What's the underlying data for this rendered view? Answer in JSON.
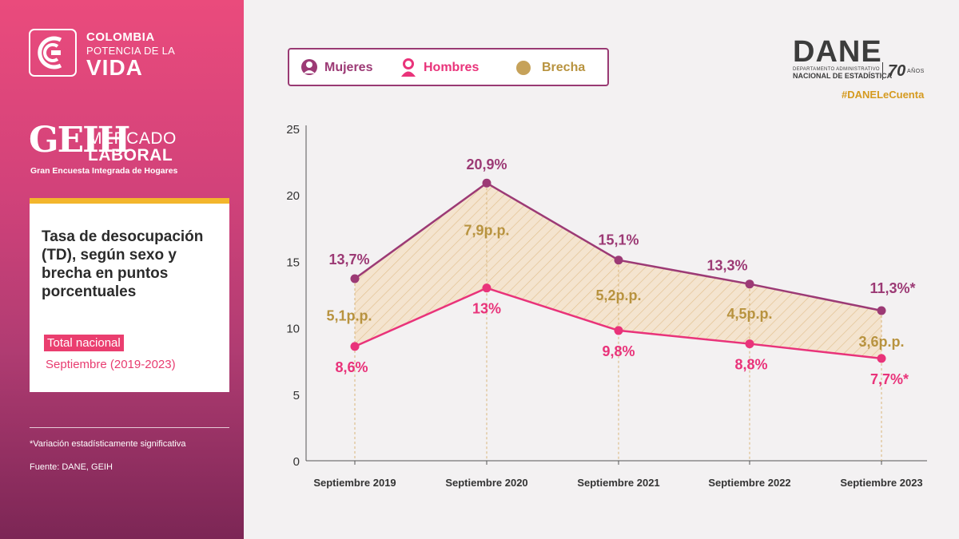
{
  "branding": {
    "colombia_line1": "COLOMBIA",
    "colombia_line2": "POTENCIA DE LA",
    "colombia_line3": "VIDA",
    "geih_mark": "GEIH",
    "geih_line1": "MERCADO",
    "geih_line2": "LABORAL",
    "geih_sub": "Gran Encuesta Integrada de Hogares",
    "dane_word": "DANE",
    "dane_sub1": "DEPARTAMENTO ADMINISTRATIVO",
    "dane_sub2": "NACIONAL DE ESTADÍSTICA",
    "dane_seventy": "70",
    "dane_anos": "AÑOS",
    "hashtag": "#DANELeCuenta"
  },
  "card": {
    "title": "Tasa de desocupación (TD), según sexo y brecha en puntos porcentuales",
    "tag": "Total nacional",
    "period": "Septiembre (2019-2023)"
  },
  "footer": {
    "note": "*Variación estadísticamente significativa",
    "source": "Fuente: DANE, GEIH"
  },
  "legend": {
    "mujeres": "Mujeres",
    "hombres": "Hombres",
    "brecha": "Brecha"
  },
  "colors": {
    "mujeres": "#9c3a75",
    "hombres": "#e9337a",
    "brecha": "#b8933f",
    "brecha_fill": "#f4e4cf",
    "accent_yellow": "#f3b62c"
  },
  "chart_data": {
    "type": "line",
    "categories": [
      "Septiembre 2019",
      "Septiembre 2020",
      "Septiembre 2021",
      "Septiembre 2022",
      "Septiembre 2023"
    ],
    "ylim": [
      0,
      25
    ],
    "yticks": [
      "0",
      "5",
      "10",
      "15",
      "20",
      "25"
    ],
    "grid": false,
    "legend_position": "top-left",
    "series": [
      {
        "name": "Mujeres",
        "values": [
          13.7,
          20.9,
          15.1,
          13.3,
          11.3
        ],
        "labels": [
          "13,7%",
          "20,9%",
          "15,1%",
          "13,3%",
          "11,3%*"
        ]
      },
      {
        "name": "Hombres",
        "values": [
          8.6,
          13,
          9.8,
          8.8,
          7.7
        ],
        "labels": [
          "8,6%",
          "13%",
          "9,8%",
          "8,8%",
          "7,7%*"
        ]
      }
    ],
    "gap": {
      "name": "Brecha",
      "values": [
        5.1,
        7.9,
        5.2,
        4.5,
        3.6
      ],
      "labels": [
        "5,1p.p.",
        "7,9p.p.",
        "5,2p.p.",
        "4,5p.p.",
        "3,6p.p."
      ]
    }
  }
}
